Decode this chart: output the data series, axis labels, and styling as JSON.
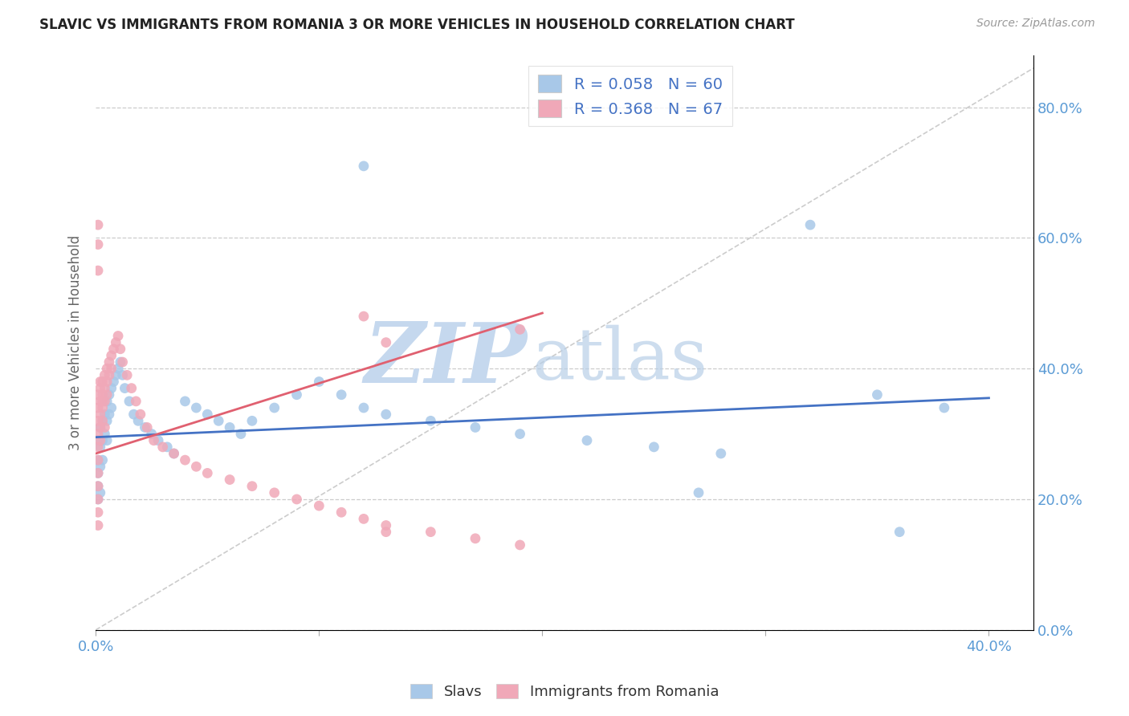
{
  "title": "SLAVIC VS IMMIGRANTS FROM ROMANIA 3 OR MORE VEHICLES IN HOUSEHOLD CORRELATION CHART",
  "source": "Source: ZipAtlas.com",
  "xlim": [
    0.0,
    0.42
  ],
  "ylim": [
    0.0,
    0.88
  ],
  "ylabel": "3 or more Vehicles in Household",
  "legend_labels": [
    "Slavs",
    "Immigrants from Romania"
  ],
  "R_slavs": 0.058,
  "N_slavs": 60,
  "R_romania": 0.368,
  "N_romania": 67,
  "slavs_color": "#a8c8e8",
  "romania_color": "#f0a8b8",
  "slavs_line_color": "#4472c4",
  "romania_line_color": "#e06070",
  "ref_line_color": "#cccccc",
  "tick_color": "#5b9bd5",
  "watermark_zip_color": "#c5d8ee",
  "watermark_atlas_color": "#c5d8ee",
  "slavs_line_x0": 0.0,
  "slavs_line_y0": 0.295,
  "slavs_line_x1": 0.4,
  "slavs_line_y1": 0.355,
  "romania_line_x0": 0.0,
  "romania_line_y0": 0.27,
  "romania_line_x1": 0.2,
  "romania_line_y1": 0.485,
  "slavs_x": [
    0.001,
    0.001,
    0.001,
    0.001,
    0.001,
    0.002,
    0.002,
    0.002,
    0.002,
    0.003,
    0.003,
    0.003,
    0.004,
    0.004,
    0.005,
    0.005,
    0.005,
    0.006,
    0.006,
    0.007,
    0.007,
    0.008,
    0.009,
    0.01,
    0.011,
    0.012,
    0.013,
    0.015,
    0.017,
    0.019,
    0.022,
    0.025,
    0.028,
    0.032,
    0.035,
    0.04,
    0.045,
    0.05,
    0.055,
    0.06,
    0.065,
    0.07,
    0.08,
    0.09,
    0.1,
    0.11,
    0.12,
    0.13,
    0.15,
    0.17,
    0.19,
    0.22,
    0.25,
    0.28,
    0.32,
    0.35,
    0.38,
    0.12,
    0.27,
    0.36
  ],
  "slavs_y": [
    0.29,
    0.26,
    0.24,
    0.22,
    0.2,
    0.31,
    0.28,
    0.25,
    0.21,
    0.32,
    0.29,
    0.26,
    0.33,
    0.3,
    0.35,
    0.32,
    0.29,
    0.36,
    0.33,
    0.37,
    0.34,
    0.38,
    0.39,
    0.4,
    0.41,
    0.39,
    0.37,
    0.35,
    0.33,
    0.32,
    0.31,
    0.3,
    0.29,
    0.28,
    0.27,
    0.35,
    0.34,
    0.33,
    0.32,
    0.31,
    0.3,
    0.32,
    0.34,
    0.36,
    0.38,
    0.36,
    0.34,
    0.33,
    0.32,
    0.31,
    0.3,
    0.29,
    0.28,
    0.27,
    0.62,
    0.36,
    0.34,
    0.71,
    0.21,
    0.15
  ],
  "romania_x": [
    0.001,
    0.001,
    0.001,
    0.001,
    0.001,
    0.001,
    0.001,
    0.001,
    0.001,
    0.001,
    0.001,
    0.002,
    0.002,
    0.002,
    0.002,
    0.002,
    0.003,
    0.003,
    0.003,
    0.003,
    0.004,
    0.004,
    0.004,
    0.005,
    0.005,
    0.005,
    0.006,
    0.006,
    0.007,
    0.007,
    0.008,
    0.009,
    0.01,
    0.011,
    0.012,
    0.014,
    0.016,
    0.018,
    0.02,
    0.023,
    0.026,
    0.03,
    0.035,
    0.04,
    0.045,
    0.05,
    0.06,
    0.07,
    0.08,
    0.09,
    0.1,
    0.11,
    0.12,
    0.13,
    0.15,
    0.17,
    0.19,
    0.12,
    0.19,
    0.13,
    0.001,
    0.001,
    0.001,
    0.002,
    0.003,
    0.004,
    0.13
  ],
  "romania_y": [
    0.36,
    0.34,
    0.32,
    0.3,
    0.28,
    0.26,
    0.24,
    0.22,
    0.2,
    0.18,
    0.16,
    0.37,
    0.35,
    0.33,
    0.31,
    0.29,
    0.38,
    0.36,
    0.34,
    0.32,
    0.39,
    0.37,
    0.35,
    0.4,
    0.38,
    0.36,
    0.41,
    0.39,
    0.42,
    0.4,
    0.43,
    0.44,
    0.45,
    0.43,
    0.41,
    0.39,
    0.37,
    0.35,
    0.33,
    0.31,
    0.29,
    0.28,
    0.27,
    0.26,
    0.25,
    0.24,
    0.23,
    0.22,
    0.21,
    0.2,
    0.19,
    0.18,
    0.17,
    0.16,
    0.15,
    0.14,
    0.13,
    0.48,
    0.46,
    0.44,
    0.62,
    0.59,
    0.55,
    0.38,
    0.35,
    0.31,
    0.15
  ]
}
